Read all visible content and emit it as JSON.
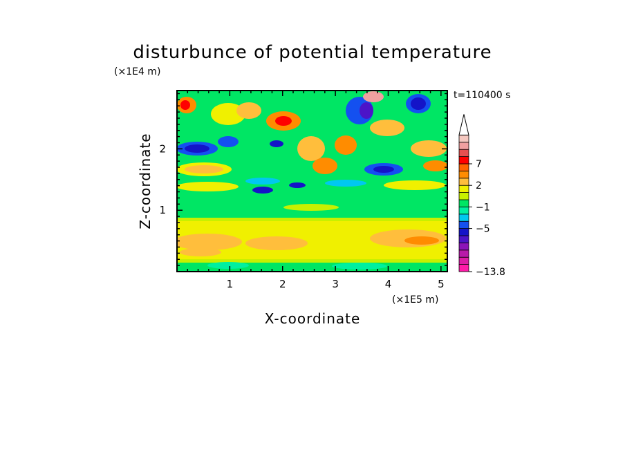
{
  "chart_data": {
    "type": "heatmap",
    "title": "disturbunce of potential temperature",
    "xlabel": "X-coordinate",
    "ylabel": "Z-coordinate",
    "x_unit_label": "(×1E5 m)",
    "y_unit_label": "(×1E4 m)",
    "time_label": "t=110400 s",
    "xlim": [
      0,
      5.12
    ],
    "ylim": [
      0,
      2.95
    ],
    "x_ticks": [
      1,
      2,
      3,
      4,
      5
    ],
    "y_ticks": [
      1,
      2
    ],
    "x_tick_labels": [
      "1",
      "2",
      "3",
      "4",
      "5"
    ],
    "y_tick_labels": [
      "1",
      "2"
    ],
    "grid": false,
    "colorbar": {
      "extend_max": true,
      "bands": [
        {
          "color": "#ff1aa8"
        },
        {
          "color": "#dd1ca6"
        },
        {
          "color": "#b81aa8"
        },
        {
          "color": "#8c14b8"
        },
        {
          "color": "#4c14c8"
        },
        {
          "color": "#1414c8"
        },
        {
          "color": "#1450f0"
        },
        {
          "color": "#00c8f0"
        },
        {
          "color": "#00f0a0"
        },
        {
          "color": "#00e664"
        },
        {
          "color": "#c8f000"
        },
        {
          "color": "#f0f000"
        },
        {
          "color": "#ffbe3c"
        },
        {
          "color": "#ff8c00"
        },
        {
          "color": "#ff6400"
        },
        {
          "color": "#ff0000"
        },
        {
          "color": "#e65050"
        },
        {
          "color": "#f0a0a0"
        },
        {
          "color": "#f5c8c0"
        }
      ],
      "labels": [
        {
          "value": "7",
          "band": 15
        },
        {
          "value": "2",
          "band": 12
        },
        {
          "value": "−1",
          "band": 9
        },
        {
          "value": "−5",
          "band": 6
        },
        {
          "value": "−13.8",
          "band": 0
        }
      ]
    }
  }
}
